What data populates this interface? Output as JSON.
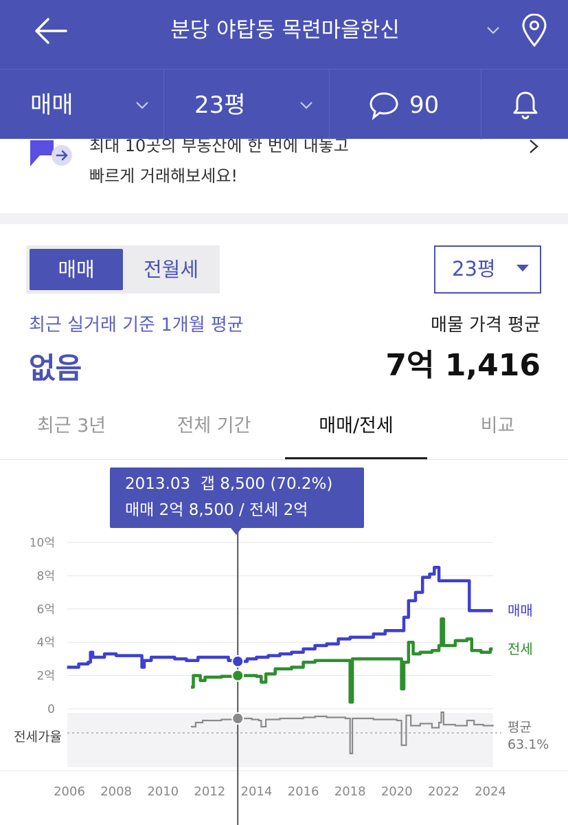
{
  "header": {
    "title": "분당 야탑동 목련마을한신",
    "icons": {
      "back": "arrow-left-icon",
      "dropdown": "chevron-down-icon",
      "location": "map-pin-icon"
    },
    "trade_type": "매매",
    "size": "23평",
    "comment_count": "90",
    "colors": {
      "bg": "#4a52b4"
    }
  },
  "banner": {
    "line1": "최대 10곳의 부동산에 한 번에 내놓고",
    "line2": "빠르게 거래해보세요!"
  },
  "summary": {
    "toggle": {
      "active": "매매",
      "inactive": "전월세"
    },
    "size_select": "23평",
    "recent_label": "최근 실거래 기준 1개월 평균",
    "recent_value": "없음",
    "listing_label": "매물 가격 평균",
    "listing_value": "7억 1,416"
  },
  "tabs": [
    "최근 3년",
    "전체 기간",
    "매매/전세",
    "비교"
  ],
  "active_tab": "매매/전세",
  "tooltip": {
    "line1": "2013.03  갭 8,500 (70.2%)",
    "line2": "매매 2억 8,500 / 전세 2억"
  },
  "chart_data": {
    "type": "line",
    "x_ticks": [
      "2006",
      "2008",
      "2010",
      "2012",
      "2014",
      "2016",
      "2018",
      "2020",
      "2022",
      "2024"
    ],
    "y_ticks": [
      "10억",
      "8억",
      "6억",
      "4억",
      "2억",
      "0"
    ],
    "ylim": [
      0,
      10
    ],
    "ratio_axis_label": "전세가율",
    "average_label": "평균",
    "average_value": "63.1%",
    "cursor_x": 2013.2,
    "series": [
      {
        "name": "매매",
        "color": "#3f3fd0",
        "points": [
          [
            2005.9,
            2.5
          ],
          [
            2006.3,
            2.5
          ],
          [
            2006.4,
            2.7
          ],
          [
            2006.8,
            2.8
          ],
          [
            2006.9,
            3.4
          ],
          [
            2007.0,
            3.1
          ],
          [
            2007.5,
            3.3
          ],
          [
            2008.0,
            3.2
          ],
          [
            2009.0,
            3.2
          ],
          [
            2009.1,
            2.5
          ],
          [
            2009.2,
            2.9
          ],
          [
            2009.5,
            3.1
          ],
          [
            2010.0,
            3.1
          ],
          [
            2010.5,
            3.0
          ],
          [
            2011.0,
            2.9
          ],
          [
            2011.5,
            3.1
          ],
          [
            2012.0,
            3.1
          ],
          [
            2012.5,
            3.1
          ],
          [
            2012.8,
            2.9
          ],
          [
            2013.2,
            2.85
          ],
          [
            2013.6,
            3.0
          ],
          [
            2014.0,
            3.1
          ],
          [
            2014.5,
            3.2
          ],
          [
            2015.0,
            3.3
          ],
          [
            2015.5,
            3.4
          ],
          [
            2016.0,
            3.6
          ],
          [
            2016.5,
            3.8
          ],
          [
            2017.0,
            3.9
          ],
          [
            2017.5,
            4.2
          ],
          [
            2018.0,
            4.3
          ],
          [
            2018.5,
            4.3
          ],
          [
            2019.0,
            4.5
          ],
          [
            2019.5,
            4.7
          ],
          [
            2020.0,
            4.7
          ],
          [
            2020.3,
            5.5
          ],
          [
            2020.5,
            6.5
          ],
          [
            2020.8,
            7.0
          ],
          [
            2021.1,
            7.9
          ],
          [
            2021.4,
            8.1
          ],
          [
            2021.6,
            8.5
          ],
          [
            2021.8,
            7.7
          ],
          [
            2022.0,
            7.7
          ],
          [
            2022.5,
            7.7
          ],
          [
            2023.0,
            7.7
          ],
          [
            2023.1,
            5.9
          ],
          [
            2024.0,
            5.9
          ],
          [
            2024.1,
            5.9
          ]
        ]
      },
      {
        "name": "전세",
        "color": "#2d8f2d",
        "points": [
          [
            2011.2,
            1.3
          ],
          [
            2011.3,
            2.0
          ],
          [
            2011.6,
            1.7
          ],
          [
            2011.8,
            1.9
          ],
          [
            2012.5,
            1.95
          ],
          [
            2013.2,
            2.0
          ],
          [
            2013.6,
            2.0
          ],
          [
            2014.0,
            1.95
          ],
          [
            2014.2,
            1.6
          ],
          [
            2014.4,
            2.1
          ],
          [
            2014.8,
            2.4
          ],
          [
            2015.5,
            2.5
          ],
          [
            2016.0,
            2.8
          ],
          [
            2016.5,
            2.9
          ],
          [
            2017.0,
            2.9
          ],
          [
            2017.8,
            2.9
          ],
          [
            2018.0,
            0.4
          ],
          [
            2018.1,
            3.0
          ],
          [
            2018.8,
            3.0
          ],
          [
            2019.5,
            3.0
          ],
          [
            2020.0,
            3.0
          ],
          [
            2020.2,
            1.2
          ],
          [
            2020.3,
            2.8
          ],
          [
            2020.5,
            4.0
          ],
          [
            2020.7,
            3.3
          ],
          [
            2021.0,
            3.4
          ],
          [
            2021.5,
            3.5
          ],
          [
            2021.8,
            3.8
          ],
          [
            2021.9,
            5.4
          ],
          [
            2022.0,
            3.8
          ],
          [
            2022.5,
            4.1
          ],
          [
            2023.0,
            4.2
          ],
          [
            2023.2,
            3.5
          ],
          [
            2023.6,
            3.4
          ],
          [
            2024.0,
            3.6
          ],
          [
            2024.1,
            3.6
          ]
        ]
      },
      {
        "name": "전세가율",
        "color": "#8a8a8a",
        "points": [
          [
            2011.2,
            0.3
          ],
          [
            2011.4,
            0.5
          ],
          [
            2011.7,
            0.6
          ],
          [
            2012.0,
            0.6
          ],
          [
            2012.5,
            0.65
          ],
          [
            2013.2,
            0.7
          ],
          [
            2013.8,
            0.65
          ],
          [
            2014.1,
            0.6
          ],
          [
            2014.2,
            0.3
          ],
          [
            2014.4,
            0.65
          ],
          [
            2015.0,
            0.7
          ],
          [
            2015.5,
            0.7
          ],
          [
            2016.0,
            0.75
          ],
          [
            2016.5,
            0.8
          ],
          [
            2017.0,
            0.75
          ],
          [
            2017.8,
            0.7
          ],
          [
            2018.0,
            -1.0
          ],
          [
            2018.1,
            0.7
          ],
          [
            2019.0,
            0.65
          ],
          [
            2019.5,
            0.65
          ],
          [
            2020.0,
            0.6
          ],
          [
            2020.2,
            -0.6
          ],
          [
            2020.4,
            0.85
          ],
          [
            2020.6,
            0.35
          ],
          [
            2021.0,
            0.45
          ],
          [
            2021.5,
            0.25
          ],
          [
            2021.8,
            0.5
          ],
          [
            2021.9,
            1.0
          ],
          [
            2022.0,
            0.4
          ],
          [
            2022.5,
            0.35
          ],
          [
            2023.0,
            0.6
          ],
          [
            2023.3,
            0.4
          ],
          [
            2023.7,
            0.35
          ],
          [
            2024.1,
            0.4
          ]
        ]
      }
    ]
  }
}
